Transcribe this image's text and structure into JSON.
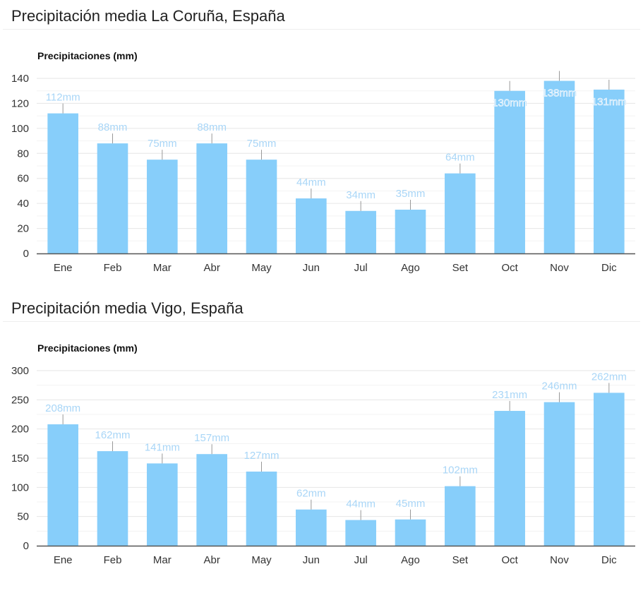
{
  "sections": [
    {
      "title": "Precipitación media La Coruña, España",
      "chart_data": {
        "type": "bar",
        "ylabel": "Precipitaciones (mm)",
        "categories": [
          "Ene",
          "Feb",
          "Mar",
          "Abr",
          "May",
          "Jun",
          "Jul",
          "Ago",
          "Set",
          "Oct",
          "Nov",
          "Dic"
        ],
        "values": [
          112,
          88,
          75,
          88,
          75,
          44,
          34,
          35,
          64,
          130,
          138,
          131
        ],
        "data_labels": [
          "112mm",
          "88mm",
          "75mm",
          "88mm",
          "75mm",
          "44mm",
          "34mm",
          "35mm",
          "64mm",
          "130mm",
          "138mm",
          "131mm"
        ],
        "ylim": [
          0,
          140
        ],
        "yticks": [
          0,
          20,
          40,
          60,
          80,
          100,
          120,
          140
        ],
        "grid": true,
        "bar_color": "#87cefa",
        "label_color": "#a9d6f7"
      }
    },
    {
      "title": "Precipitación media Vigo, España",
      "chart_data": {
        "type": "bar",
        "ylabel": "Precipitaciones (mm)",
        "categories": [
          "Ene",
          "Feb",
          "Mar",
          "Abr",
          "May",
          "Jun",
          "Jul",
          "Ago",
          "Set",
          "Oct",
          "Nov",
          "Dic"
        ],
        "values": [
          208,
          162,
          141,
          157,
          127,
          62,
          44,
          45,
          102,
          231,
          246,
          262
        ],
        "data_labels": [
          "208mm",
          "162mm",
          "141mm",
          "157mm",
          "127mm",
          "62mm",
          "44mm",
          "45mm",
          "102mm",
          "231mm",
          "246mm",
          "262mm"
        ],
        "ylim": [
          0,
          300
        ],
        "yticks": [
          0,
          50,
          100,
          150,
          200,
          250,
          300
        ],
        "grid": true,
        "bar_color": "#87cefa",
        "label_color": "#a9d6f7"
      }
    }
  ]
}
